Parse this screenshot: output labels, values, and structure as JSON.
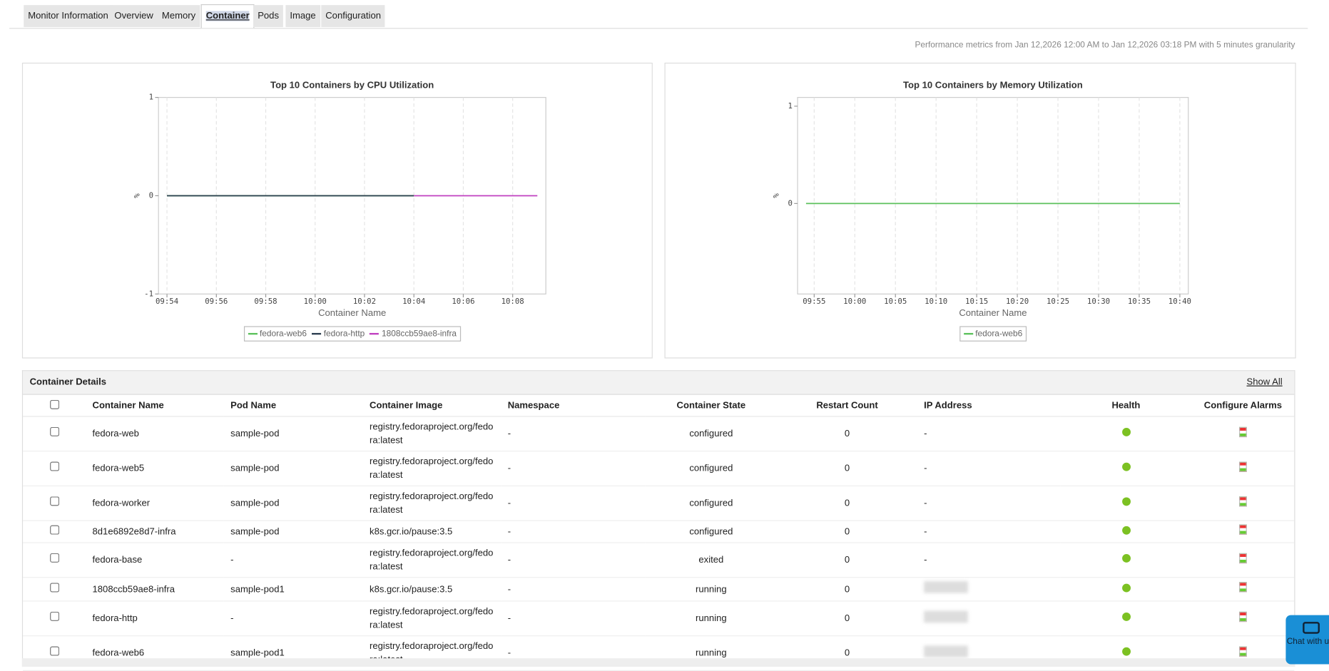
{
  "tabs": [
    "Monitor Information",
    "Overview",
    "Memory",
    "Container",
    "Pods",
    "Image",
    "Configuration"
  ],
  "metrics_note": "Performance metrics from Jan 12,2026 12:00 AM to Jan 12,2026 03:18 PM with 5 minutes granularity",
  "chart_data": [
    {
      "type": "line",
      "title": "Top 10 Containers by CPU Utilization",
      "xlabel": "Container Name",
      "ylabel": "%",
      "x": [
        "09:54",
        "09:56",
        "09:58",
        "10:00",
        "10:02",
        "10:04",
        "10:06",
        "10:08",
        "10:09"
      ],
      "xlim": [
        "09:54",
        "10:09"
      ],
      "xticks": [
        "09:54",
        "09:56",
        "09:58",
        "10:00",
        "10:02",
        "10:04",
        "10:06",
        "10:08"
      ],
      "ylim": [
        -1,
        1
      ],
      "yticks": [
        -1,
        0,
        1
      ],
      "grid": true,
      "series": [
        {
          "name": "fedora-web6",
          "color": "#5cc15c",
          "values": [
            0,
            0,
            0,
            0,
            0,
            0,
            null,
            null,
            null
          ]
        },
        {
          "name": "fedora-http",
          "color": "#2c3e50",
          "values": [
            0,
            0,
            0,
            0,
            0,
            0,
            null,
            null,
            null
          ]
        },
        {
          "name": "1808ccb59ae8-infra",
          "color": "#c040c0",
          "values": [
            null,
            null,
            null,
            null,
            null,
            0,
            0,
            0,
            0
          ]
        }
      ]
    },
    {
      "type": "line",
      "title": "Top 10 Containers by Memory Utilization",
      "xlabel": "Container Name",
      "ylabel": "%",
      "x": [
        "09:54",
        "10:00",
        "10:05",
        "10:10",
        "10:15",
        "10:20",
        "10:25",
        "10:30",
        "10:35",
        "10:40"
      ],
      "xlim": [
        "09:54",
        "10:40"
      ],
      "xticks": [
        "09:55",
        "10:00",
        "10:05",
        "10:10",
        "10:15",
        "10:20",
        "10:25",
        "10:30",
        "10:35",
        "10:40"
      ],
      "ylim": [
        -0.93,
        1.09
      ],
      "yticks": [
        0,
        1
      ],
      "grid": true,
      "series": [
        {
          "name": "fedora-web6",
          "color": "#5cc15c",
          "values": [
            0,
            0,
            0,
            0,
            0,
            0,
            0,
            0,
            0,
            0
          ]
        }
      ]
    }
  ],
  "table": {
    "title": "Container Details",
    "show_all": "Show All",
    "columns": [
      "Container Name",
      "Pod Name",
      "Container Image",
      "Namespace",
      "Container State",
      "Restart Count",
      "IP Address",
      "Health",
      "Configure Alarms"
    ],
    "rows": [
      [
        "fedora-web",
        "sample-pod",
        "registry.fedoraproject.org/fedora:latest",
        "-",
        "configured",
        0,
        "-"
      ],
      [
        "fedora-web5",
        "sample-pod",
        "registry.fedoraproject.org/fedora:latest",
        "-",
        "configured",
        0,
        "-"
      ],
      [
        "fedora-worker",
        "sample-pod",
        "registry.fedoraproject.org/fedora:latest",
        "-",
        "configured",
        0,
        "-"
      ],
      [
        "8d1e6892e8d7-infra",
        "sample-pod",
        "k8s.gcr.io/pause:3.5",
        "-",
        "configured",
        0,
        "-"
      ],
      [
        "fedora-base",
        "-",
        "registry.fedoraproject.org/fedora:latest",
        "-",
        "exited",
        0,
        "-"
      ],
      [
        "1808ccb59ae8-infra",
        "sample-pod1",
        "k8s.gcr.io/pause:3.5",
        "-",
        "running",
        0,
        null
      ],
      [
        "fedora-http",
        "-",
        "registry.fedoraproject.org/fedora:latest",
        "-",
        "running",
        0,
        null
      ],
      [
        "fedora-web6",
        "sample-pod1",
        "registry.fedoraproject.org/fedora:latest",
        "-",
        "running",
        0,
        null
      ]
    ]
  },
  "chat": "Chat with us!"
}
